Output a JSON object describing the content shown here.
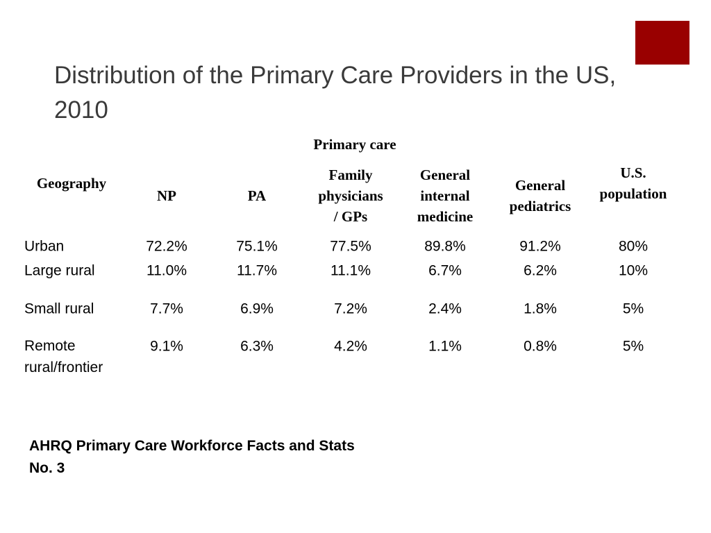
{
  "title": "Distribution of the Primary Care Providers in the US, 2010",
  "accent_color": "#990000",
  "table": {
    "group_header": "Primary care",
    "headers": [
      "Geography",
      "NP",
      "PA",
      "Family physicians / GPs",
      "General internal medicine",
      "General pediatrics",
      "U.S. population"
    ],
    "header_lines": [
      [
        "Geography"
      ],
      [
        "NP"
      ],
      [
        "PA"
      ],
      [
        "Family",
        "physicians",
        "/ GPs"
      ],
      [
        "General",
        "internal",
        "medicine"
      ],
      [
        "General",
        "pediatrics"
      ],
      [
        "U.S.",
        "population"
      ]
    ],
    "rows": [
      {
        "geography": "Urban",
        "values": [
          "72.2%",
          "75.1%",
          "77.5%",
          "89.8%",
          "91.2%",
          "80%"
        ]
      },
      {
        "geography": "Large rural",
        "values": [
          "11.0%",
          "11.7%",
          "11.1%",
          "6.7%",
          "6.2%",
          "10%"
        ]
      },
      {
        "geography": "Small rural",
        "values": [
          "7.7%",
          "6.9%",
          "7.2%",
          "2.4%",
          "1.8%",
          "5%"
        ]
      },
      {
        "geography": "Remote rural/frontier",
        "geo_lines": [
          "Remote",
          "rural/frontier"
        ],
        "values": [
          "9.1%",
          "6.3%",
          "4.2%",
          "1.1%",
          "0.8%",
          "5%"
        ]
      }
    ]
  },
  "source": "AHRQ Primary Care Workforce Facts and Stats No. 3",
  "source_lines": [
    "AHRQ Primary Care Workforce Facts and Stats",
    "No. 3"
  ]
}
